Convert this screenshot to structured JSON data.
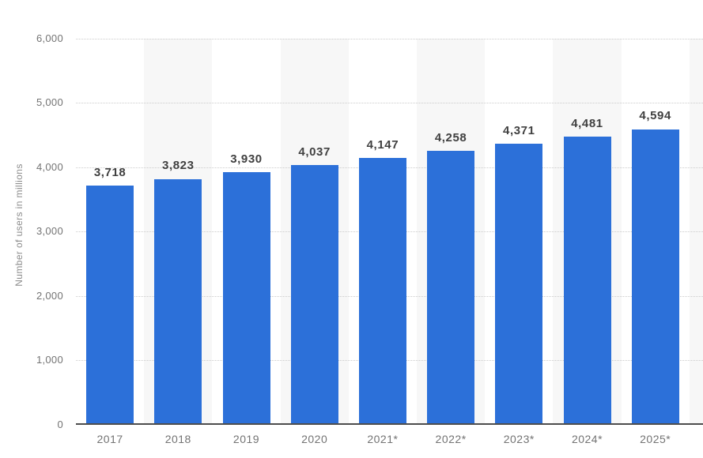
{
  "chart_data": {
    "type": "bar",
    "title": "",
    "categories": [
      "2017",
      "2018",
      "2019",
      "2020",
      "2021*",
      "2022*",
      "2023*",
      "2024*",
      "2025*"
    ],
    "values": [
      3718,
      3823,
      3930,
      4037,
      4147,
      4258,
      4371,
      4481,
      4594
    ],
    "value_labels": [
      "3,718",
      "3,823",
      "3,930",
      "4,037",
      "4,147",
      "4,258",
      "4,371",
      "4,481",
      "4,594"
    ],
    "xlabel": "",
    "ylabel": "Number of users in millions",
    "ylim": [
      0,
      6000
    ],
    "ytick_interval": 1000,
    "yticks": [
      0,
      1000,
      2000,
      3000,
      4000,
      5000,
      6000
    ],
    "ytick_labels": [
      "0",
      "1,000",
      "2,000",
      "3,000",
      "4,000",
      "5,000",
      "6,000"
    ],
    "grid": "horizontal-dotted",
    "legend": "none",
    "plot_bands": "alternating vertical column shading behind every second category",
    "colors": {
      "bar": "#2c70d9",
      "band": "#f7f7f7",
      "grid": "#cccccc",
      "axis_line": "#4d4d4d",
      "tick_label": "#737373",
      "value_label": "#404040",
      "y_axis_title": "#8c8c8c",
      "background": "#ffffff"
    }
  }
}
